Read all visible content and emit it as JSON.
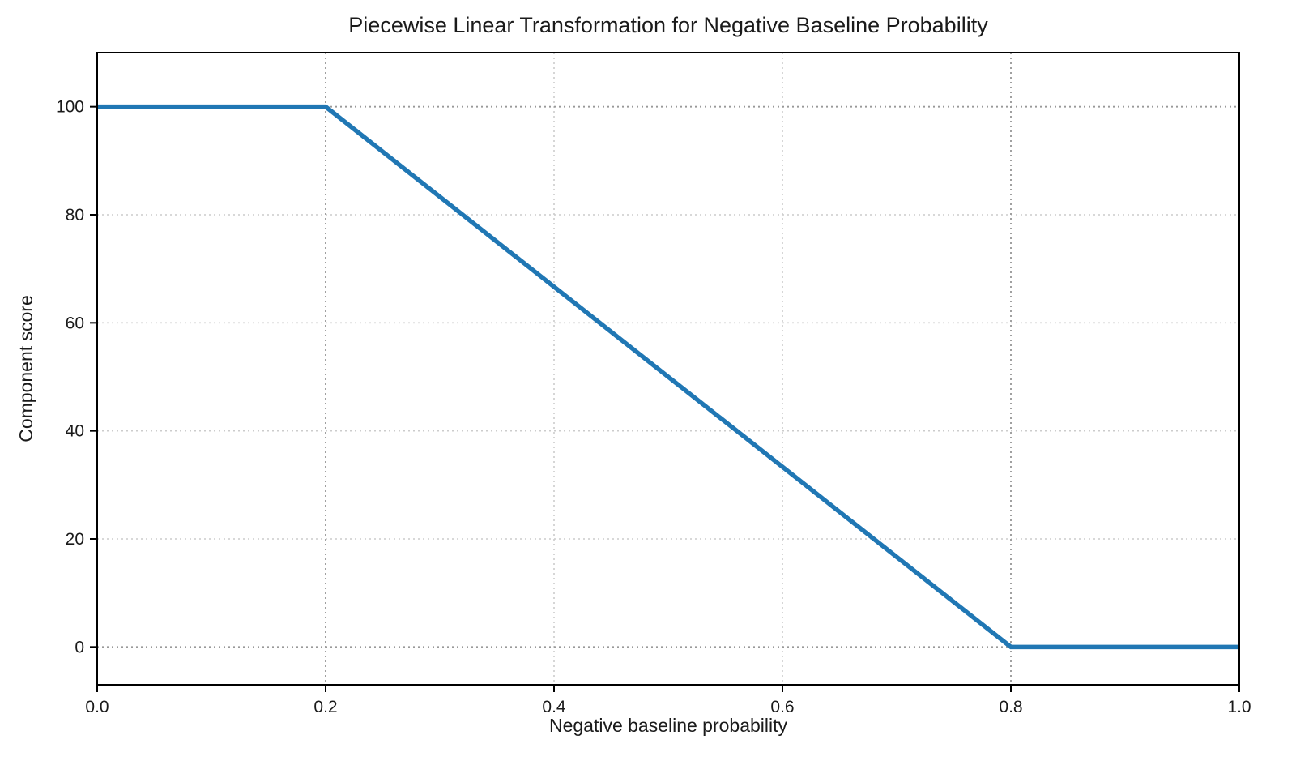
{
  "chart_data": {
    "type": "line",
    "title": "Piecewise Linear Transformation for Negative Baseline Probability",
    "xlabel": "Negative baseline probability",
    "ylabel": "Component score",
    "xlim": [
      0.0,
      1.0
    ],
    "ylim": [
      -7,
      110
    ],
    "xticks": [
      0.0,
      0.2,
      0.4,
      0.6,
      0.8,
      1.0
    ],
    "xtick_labels": [
      "0.0",
      "0.2",
      "0.4",
      "0.6",
      "0.8",
      "1.0"
    ],
    "yticks": [
      0,
      20,
      40,
      60,
      80,
      100
    ],
    "ytick_labels": [
      "0",
      "20",
      "40",
      "60",
      "80",
      "100"
    ],
    "series": [
      {
        "name": "component-score-line",
        "color": "#2077b4",
        "line_width": 5.5,
        "x": [
          0.0,
          0.2,
          0.8,
          1.0
        ],
        "y": [
          100,
          100,
          0,
          0
        ]
      }
    ],
    "grid": {
      "on": true,
      "color": "#cccccc",
      "style": "dotted"
    },
    "reference_lines": {
      "x": [
        0.2,
        0.8
      ],
      "y": [
        0,
        100
      ],
      "color": "#999999",
      "style": "dotted"
    },
    "legend": "none"
  }
}
